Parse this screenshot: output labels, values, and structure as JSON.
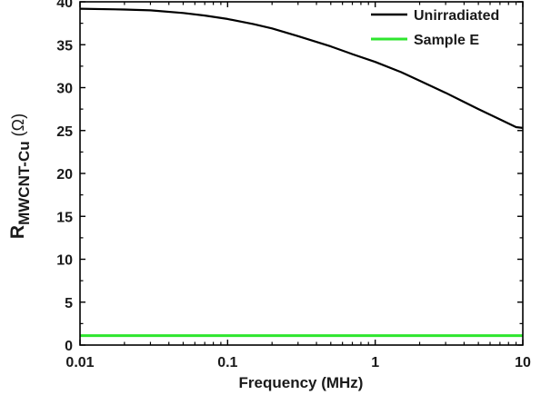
{
  "chart_data": {
    "type": "line",
    "title": "",
    "xlabel": "Frequency (MHz)",
    "ylabel_main": "R",
    "ylabel_sub": "MWCNT-Cu",
    "ylabel_unit": " (Ω)",
    "xscale": "log",
    "xlim": [
      0.01,
      10
    ],
    "ylim": [
      0,
      40
    ],
    "xticks": [
      0.01,
      0.1,
      1,
      10
    ],
    "xtick_labels": [
      "0.01",
      "0.1",
      "1",
      "10"
    ],
    "yticks": [
      0,
      5,
      10,
      15,
      20,
      25,
      30,
      35,
      40
    ],
    "ytick_labels": [
      "0",
      "5",
      "10",
      "15",
      "20",
      "25",
      "30",
      "35",
      "40"
    ],
    "grid": false,
    "legend_position": "top-right",
    "series": [
      {
        "name": "Unirradiated",
        "color": "#000000",
        "x": [
          0.01,
          0.02,
          0.03,
          0.05,
          0.07,
          0.1,
          0.15,
          0.2,
          0.3,
          0.5,
          0.7,
          1,
          1.5,
          2,
          3,
          5,
          7,
          9,
          10
        ],
        "y": [
          39.2,
          39.1,
          39.0,
          38.7,
          38.4,
          38.0,
          37.4,
          36.9,
          36.0,
          34.8,
          33.9,
          33.0,
          31.8,
          30.8,
          29.4,
          27.5,
          26.3,
          25.4,
          25.3
        ]
      },
      {
        "name": "Sample E",
        "color": "#2ee62e",
        "x": [
          0.01,
          0.1,
          1,
          10
        ],
        "y": [
          1.1,
          1.1,
          1.1,
          1.1
        ]
      }
    ]
  }
}
